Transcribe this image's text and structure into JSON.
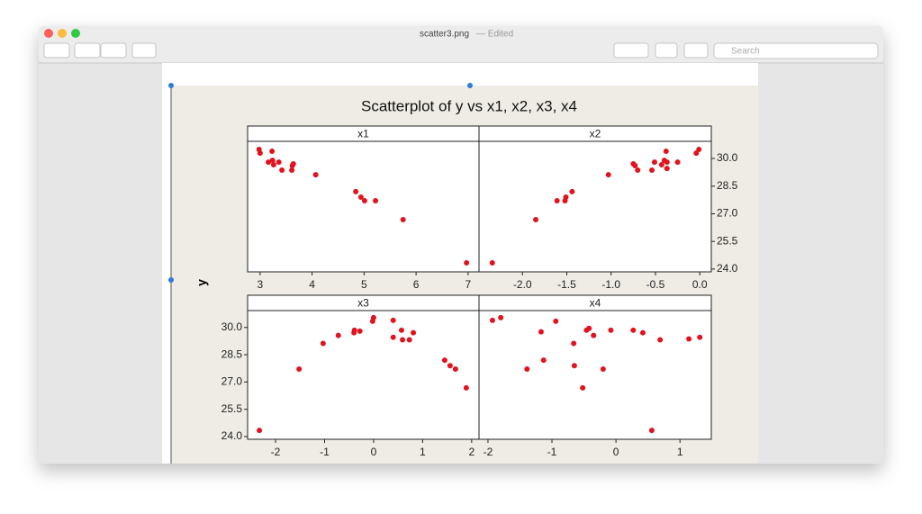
{
  "window": {
    "title": "scatter3.png",
    "status": "— Edited",
    "search_placeholder": "Search"
  },
  "figure": {
    "title": "Scatterplot of y vs x1, x2, x3, x4",
    "ylabel": "y"
  },
  "chart_data": [
    {
      "type": "scatter",
      "title": "x1",
      "color": "#e0141e",
      "x": [
        2.98,
        3.0,
        3.23,
        3.16,
        3.24,
        3.26,
        3.36,
        3.42,
        3.61,
        3.62,
        3.64,
        4.07,
        4.84,
        4.94,
        5.01,
        5.22,
        5.75,
        6.97
      ],
      "values": [
        30.49,
        30.29,
        30.39,
        29.8,
        29.9,
        29.66,
        29.8,
        29.37,
        29.37,
        29.61,
        29.71,
        29.12,
        28.2,
        27.9,
        27.71,
        27.71,
        26.68,
        24.34
      ],
      "xlim": [
        2.76,
        7.21
      ],
      "xticks": [
        3,
        4,
        5,
        6,
        7
      ],
      "ylim": [
        23.85,
        30.93
      ]
    },
    {
      "type": "scatter",
      "title": "x2",
      "color": "#e0141e",
      "x": [
        -2.34,
        -1.85,
        -1.61,
        -1.52,
        -1.51,
        -1.44,
        -1.03,
        -0.75,
        -0.73,
        -0.7,
        -0.54,
        -0.51,
        -0.43,
        -0.4,
        -0.38,
        -0.37,
        -0.37,
        -0.25,
        -0.04,
        -0.01
      ],
      "values": [
        24.34,
        26.68,
        27.71,
        27.71,
        27.9,
        28.2,
        29.12,
        29.71,
        29.61,
        29.37,
        29.37,
        29.8,
        29.66,
        29.9,
        30.39,
        29.8,
        29.46,
        29.8,
        30.29,
        30.49
      ],
      "xlim": [
        -2.49,
        0.13
      ],
      "xticks": [
        {
          "value": -2,
          "label": "-2.0"
        },
        -1.5,
        {
          "value": -1,
          "label": "-1.0"
        },
        -0.5,
        {
          "value": 0,
          "label": "0.0"
        }
      ],
      "ylim": [
        23.85,
        30.93
      ],
      "y_axis_side": "right",
      "yticks": [
        {
          "value": 24,
          "label": "24.0"
        },
        25.5,
        {
          "value": 27,
          "label": "27.0"
        },
        28.5,
        {
          "value": 30,
          "label": "30.0"
        }
      ]
    },
    {
      "type": "scatter",
      "title": "x3",
      "color": "#e0141e",
      "x": [
        -2.33,
        -1.52,
        -1.03,
        -0.72,
        -0.4,
        -0.39,
        -0.28,
        -0.02,
        0,
        0.4,
        0.4,
        0.57,
        0.59,
        0.73,
        0.81,
        1.45,
        1.56,
        1.67,
        1.89
      ],
      "values": [
        24.34,
        27.71,
        29.12,
        29.56,
        29.71,
        29.85,
        29.8,
        30.34,
        30.54,
        30.39,
        29.46,
        29.85,
        29.32,
        29.32,
        29.71,
        28.2,
        27.9,
        27.71,
        26.68
      ],
      "xlim": [
        -2.57,
        2.15
      ],
      "xticks": [
        -2,
        -1,
        0,
        1,
        2
      ],
      "ylim": [
        23.85,
        30.93
      ],
      "y_axis_side": "left",
      "yticks": [
        {
          "value": 24,
          "label": "24.0"
        },
        25.5,
        {
          "value": 27,
          "label": "27.0"
        },
        28.5,
        {
          "value": 30,
          "label": "30.0"
        }
      ]
    },
    {
      "type": "scatter",
      "title": "x4",
      "color": "#e0141e",
      "x": [
        -1.93,
        -1.8,
        -1.39,
        -1.17,
        -1.13,
        -0.94,
        -0.66,
        -0.65,
        -0.52,
        -0.46,
        -0.42,
        -0.35,
        -0.2,
        -0.08,
        0.27,
        0.42,
        0.56,
        0.69,
        1.14,
        1.31
      ],
      "values": [
        30.39,
        30.54,
        27.71,
        29.76,
        28.2,
        30.34,
        29.12,
        27.9,
        26.68,
        29.85,
        29.95,
        29.56,
        27.71,
        29.85,
        29.85,
        29.71,
        24.34,
        29.32,
        29.37,
        29.46
      ],
      "xlim": [
        -2.14,
        1.49
      ],
      "xticks": [
        -2,
        -1,
        0,
        1
      ],
      "ylim": [
        23.85,
        30.93
      ]
    }
  ]
}
